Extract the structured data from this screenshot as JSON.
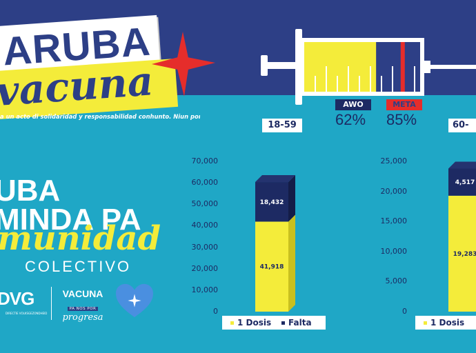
{
  "logo": {
    "line1": "ARUBA",
    "line2": "vacuna"
  },
  "tagline": "a un acto di solidaridad y responsabilidad conhunto. Niun por keda atras!",
  "headline": {
    "line1": "UBA",
    "line2": "MINDA PA",
    "line3": "munidad",
    "line4": "COLECTIVO"
  },
  "partners": {
    "dvg": "DVG",
    "dvg_sub": "DIRECTIE VOLKSGEZONDHEID",
    "vacuna_title": "VACUNA",
    "vacuna_mid": "PA NOS POR",
    "vacuna_script": "progresa"
  },
  "progress": {
    "awo_label": "AWO",
    "awo_pct": "62%",
    "meta_label": "META",
    "meta_pct": "85%",
    "awo_fraction": 0.62,
    "meta_fraction": 0.85
  },
  "colors": {
    "navy": "#2d3f86",
    "dark_navy": "#1d2a63",
    "teal": "#1fa7c6",
    "yellow": "#f4ec3a",
    "red": "#e52d2b"
  },
  "icons": {
    "star": "red-star-icon",
    "heart": "heart-icon",
    "syringe": "syringe-icon"
  },
  "chart_data": [
    {
      "type": "bar",
      "title": "18-59",
      "categories": [
        "18-59"
      ],
      "series": [
        {
          "name": "1 Dosis",
          "values": [
            41918
          ],
          "labels": [
            "41,918"
          ]
        },
        {
          "name": "Falta",
          "values": [
            18432
          ],
          "labels": [
            "18,432"
          ]
        }
      ],
      "stacked": true,
      "ylim": [
        0,
        70000
      ],
      "yticks": [
        "0",
        "10,000",
        "20,000",
        "30,000",
        "40,000",
        "50,000",
        "60,000",
        "70,000"
      ],
      "legend": [
        "1 Dosis",
        "Falta"
      ]
    },
    {
      "type": "bar",
      "title": "60-",
      "categories": [
        "60-"
      ],
      "series": [
        {
          "name": "1 Dosis",
          "values": [
            19283
          ],
          "labels": [
            "19,283"
          ]
        },
        {
          "name": "Falta",
          "values": [
            4517
          ],
          "labels": [
            "4,517"
          ]
        }
      ],
      "stacked": true,
      "ylim": [
        0,
        25000
      ],
      "yticks": [
        "0",
        "5,000",
        "10,000",
        "15,000",
        "20,000",
        "25,000"
      ],
      "legend": [
        "1 Dosis"
      ]
    }
  ]
}
